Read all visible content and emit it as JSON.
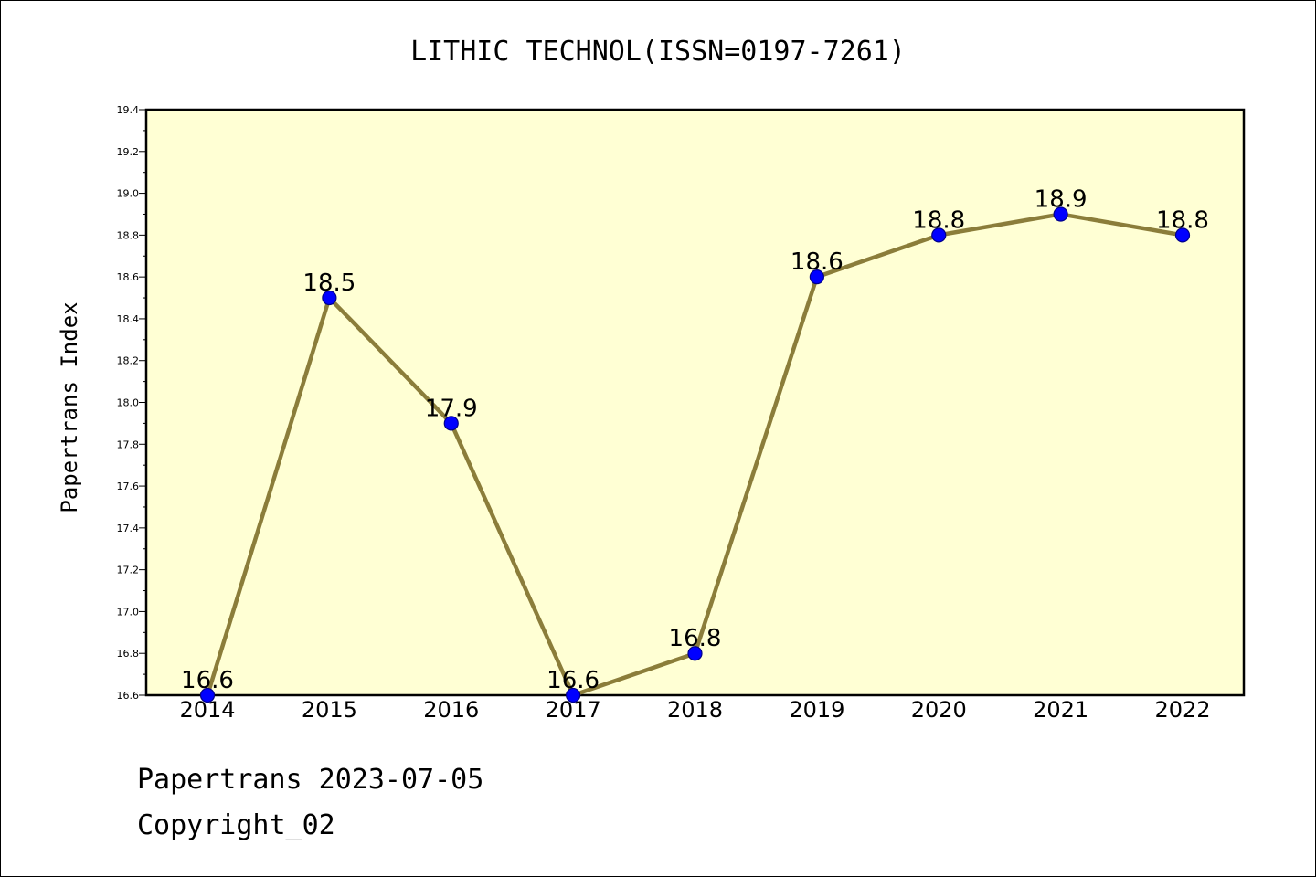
{
  "footer": {
    "line1": "Papertrans 2023-07-05",
    "line2": "Copyright_02"
  },
  "chart_data": {
    "type": "line",
    "title": "LITHIC TECHNOL(ISSN=0197-7261)",
    "xlabel": "",
    "ylabel": "Papertrans Index",
    "categories": [
      "2014",
      "2015",
      "2016",
      "2017",
      "2018",
      "2019",
      "2020",
      "2021",
      "2022"
    ],
    "series": [
      {
        "values": [
          16.6,
          18.5,
          17.9,
          16.6,
          16.8,
          18.6,
          18.8,
          18.9,
          18.8
        ],
        "data_labels": [
          "16.6",
          "18.5",
          "17.9",
          "16.6",
          "16.8",
          "18.6",
          "18.8",
          "18.9",
          "18.8"
        ]
      }
    ],
    "ylim": [
      16.6,
      19.4
    ],
    "yticks": [
      "16.6",
      "16.8",
      "17.0",
      "17.2",
      "17.4",
      "17.6",
      "17.8",
      "18.0",
      "18.2",
      "18.4",
      "18.6",
      "18.8",
      "19.0",
      "19.2",
      "19.4"
    ],
    "grid": false,
    "colors": {
      "plot_background": "#ffffd4",
      "line": "#8b7d3a",
      "marker_fill": "#0000ff",
      "marker_edge": "#00008b"
    }
  }
}
